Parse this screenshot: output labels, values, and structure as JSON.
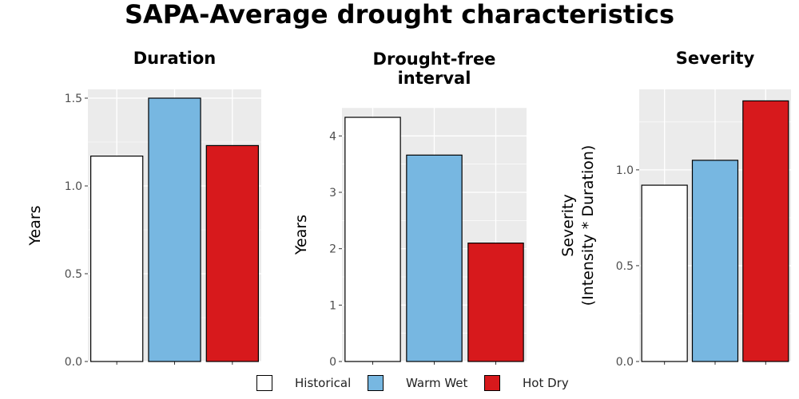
{
  "title": "SAPA-Average drought characteristics",
  "legend": {
    "items": [
      {
        "label": "Historical",
        "color": "#ffffff"
      },
      {
        "label": "Warm Wet",
        "color": "#77b7e1"
      },
      {
        "label": "Hot Dry",
        "color": "#d7191c"
      }
    ]
  },
  "chart_data": [
    {
      "type": "bar",
      "title": "Duration",
      "ylabel": "Years",
      "categories": [
        "Historical",
        "Warm Wet",
        "Hot Dry"
      ],
      "values": [
        1.17,
        1.5,
        1.23
      ],
      "ylim": [
        0,
        1.55
      ],
      "yticks": [
        0.0,
        0.5,
        1.0,
        1.5
      ],
      "ytick_labels": [
        "0.0",
        "0.5",
        "1.0",
        "1.5"
      ],
      "colors": [
        "#ffffff",
        "#77b7e1",
        "#d7191c"
      ],
      "grid": true
    },
    {
      "type": "bar",
      "title": "Drought-free\ninterval",
      "ylabel": "Years",
      "categories": [
        "Historical",
        "Warm Wet",
        "Hot Dry"
      ],
      "values": [
        4.33,
        3.66,
        2.1
      ],
      "ylim": [
        0,
        4.5
      ],
      "yticks": [
        0,
        1,
        2,
        3,
        4
      ],
      "ytick_labels": [
        "0",
        "1",
        "2",
        "3",
        "4"
      ],
      "colors": [
        "#ffffff",
        "#77b7e1",
        "#d7191c"
      ],
      "grid": true
    },
    {
      "type": "bar",
      "title": "Severity",
      "ylabel": "Severity\n(Intensity * Duration)",
      "categories": [
        "Historical",
        "Warm Wet",
        "Hot Dry"
      ],
      "values": [
        0.92,
        1.05,
        1.36
      ],
      "ylim": [
        0,
        1.42
      ],
      "yticks": [
        0.0,
        0.5,
        1.0
      ],
      "ytick_labels": [
        "0.0",
        "0.5",
        "1.0"
      ],
      "colors": [
        "#ffffff",
        "#77b7e1",
        "#d7191c"
      ],
      "grid": true
    }
  ]
}
